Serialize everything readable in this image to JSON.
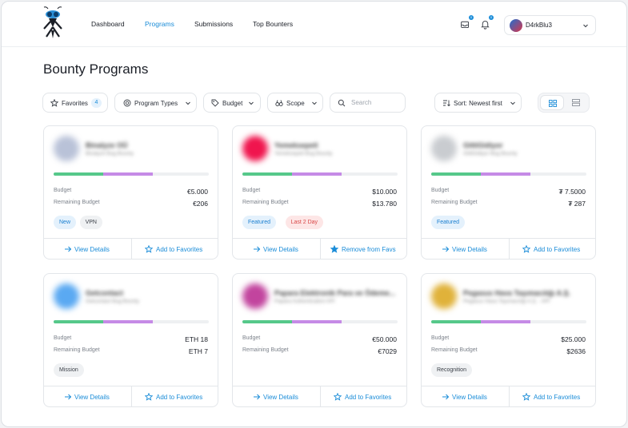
{
  "nav": {
    "links": [
      "Dashboard",
      "Programs",
      "Submissions",
      "Top Bounters"
    ],
    "active": "Programs",
    "notif_counts": [
      "0",
      "0"
    ],
    "username": "D4rkBlu3"
  },
  "page_title": "Bounty Programs",
  "filters": {
    "favorites_label": "Favorites",
    "favorites_count": "4",
    "program_types_label": "Program Types",
    "budget_label": "Budget",
    "scope_label": "Scope",
    "search_placeholder": "Search",
    "sort_label": "Sort: Newest first"
  },
  "labels": {
    "budget": "Budget",
    "remaining": "Remaining Budget",
    "view_details": "View Details",
    "add_fav": "Add to Favorites",
    "remove_fav": "Remove from Favs"
  },
  "colors": {
    "accent": "#1a8cd8",
    "progress_green": "#56c88a",
    "progress_purple": "#c58be6"
  },
  "cards": [
    {
      "name": "Binalyze OÜ",
      "sub": "Binalyze Bug Bounty",
      "budget": "€5.000",
      "remaining": "€206",
      "progress_green": 0.32,
      "progress_purple": 0.64,
      "tags": [
        [
          "New",
          "blue"
        ],
        [
          "VPN",
          "gray"
        ]
      ],
      "fav_action": "add",
      "logo_color": "#b9c2d8"
    },
    {
      "name": "Yemeksepeti",
      "sub": "Yemeksepeti Bug Bounty",
      "budget": "$10.000",
      "remaining": "$13.780",
      "progress_green": 0.32,
      "progress_purple": 0.64,
      "tags": [
        [
          "Featured",
          "blue"
        ],
        [
          "Last 2 Day",
          "red"
        ]
      ],
      "fav_action": "remove",
      "logo_color": "#f0154e"
    },
    {
      "name": "GittiGidiyor",
      "sub": "GittiGidiyor Bug Bounty",
      "budget": "₮ 7.5000",
      "remaining": "₮ 287",
      "progress_green": 0.32,
      "progress_purple": 0.64,
      "tags": [
        [
          "Featured",
          "blue"
        ]
      ],
      "fav_action": "add",
      "logo_color": "#c9ccd0"
    },
    {
      "name": "Getcontact",
      "sub": "Getcontact Bug Bounty",
      "budget": "ETH 18",
      "remaining": "ETH 7",
      "progress_green": 0.32,
      "progress_purple": 0.64,
      "tags": [
        [
          "Mission",
          "gray"
        ]
      ],
      "fav_action": "add",
      "logo_color": "#5aa9f2"
    },
    {
      "name": "Papara Elektronik Para ve Ödeme...",
      "sub": "Papara Authentication API",
      "budget": "€50.000",
      "remaining": "€7029",
      "progress_green": 0.32,
      "progress_purple": 0.64,
      "tags": [],
      "fav_action": "add",
      "logo_color": "#c2449e"
    },
    {
      "name": "Pegasus Hava Taşımacılığı A.Ş.",
      "sub": "Pegasus Hava Taşımacılığı A.Ş. - API",
      "budget": "$25.000",
      "remaining": "$2636",
      "progress_green": 0.32,
      "progress_purple": 0.64,
      "tags": [
        [
          "Recognition",
          "gray"
        ]
      ],
      "fav_action": "add",
      "logo_color": "#e0b23a"
    }
  ]
}
